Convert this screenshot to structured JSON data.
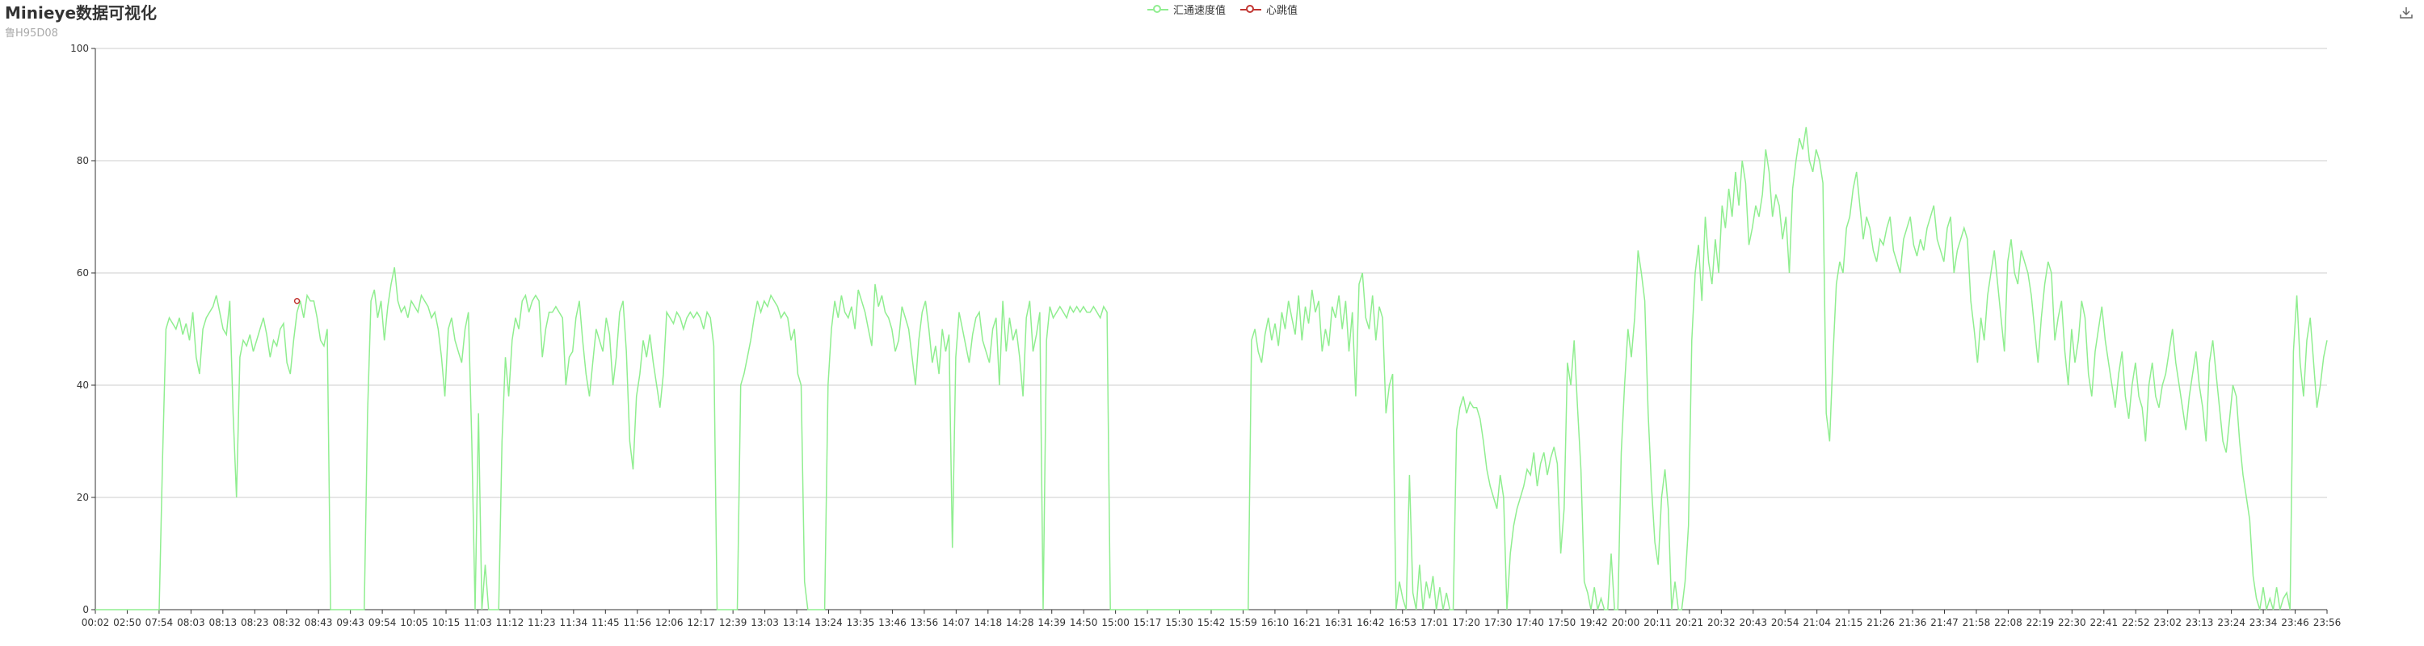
{
  "title": "Minieye数据可视化",
  "subtitle": "鲁H95D08",
  "legend": {
    "items": [
      {
        "label": "汇通速度值",
        "color": "#90ee90"
      },
      {
        "label": "心跳值",
        "color": "#c23531"
      }
    ]
  },
  "toolbar": {
    "download_icon": "download-icon"
  },
  "chart_data": {
    "type": "line",
    "title": "Minieye数据可视化",
    "subtitle": "鲁H95D08",
    "xlabel": "",
    "ylabel": "",
    "ylim": [
      0,
      100
    ],
    "yticks": [
      0,
      20,
      40,
      60,
      80,
      100
    ],
    "grid": true,
    "legend_position": "top-center",
    "x_tick_labels": [
      "00:02",
      "02:50",
      "07:54",
      "08:03",
      "08:13",
      "08:23",
      "08:32",
      "08:43",
      "09:43",
      "09:54",
      "10:05",
      "10:15",
      "11:03",
      "11:12",
      "11:23",
      "11:34",
      "11:45",
      "11:56",
      "12:06",
      "12:17",
      "12:39",
      "13:03",
      "13:14",
      "13:24",
      "13:35",
      "13:46",
      "13:56",
      "14:07",
      "14:18",
      "14:28",
      "14:39",
      "14:50",
      "15:00",
      "15:17",
      "15:30",
      "15:42",
      "15:59",
      "16:10",
      "16:21",
      "16:31",
      "16:42",
      "16:53",
      "17:01",
      "17:20",
      "17:30",
      "17:40",
      "17:50",
      "19:42",
      "20:00",
      "20:11",
      "20:21",
      "20:32",
      "20:43",
      "20:54",
      "21:04",
      "21:15",
      "21:26",
      "21:36",
      "21:47",
      "21:58",
      "22:08",
      "22:19",
      "22:30",
      "22:41",
      "22:52",
      "23:02",
      "23:13",
      "23:24",
      "23:34",
      "23:46",
      "23:56"
    ],
    "series": [
      {
        "name": "汇通速度值",
        "color": "#90ee90",
        "values": [
          0,
          0,
          0,
          0,
          0,
          0,
          0,
          0,
          0,
          0,
          0,
          0,
          0,
          0,
          0,
          0,
          0,
          0,
          0,
          0,
          27,
          50,
          52,
          51,
          50,
          52,
          49,
          51,
          48,
          53,
          45,
          42,
          50,
          52,
          53,
          54,
          56,
          53,
          50,
          49,
          55,
          35,
          20,
          45,
          48,
          47,
          49,
          46,
          48,
          50,
          52,
          49,
          45,
          48,
          47,
          50,
          51,
          44,
          42,
          48,
          53,
          55,
          52,
          56,
          55,
          55,
          52,
          48,
          47,
          50,
          0,
          0,
          0,
          0,
          0,
          0,
          0,
          0,
          0,
          0,
          0,
          35,
          55,
          57,
          52,
          55,
          48,
          54,
          58,
          61,
          55,
          53,
          54,
          52,
          55,
          54,
          53,
          56,
          55,
          54,
          52,
          53,
          50,
          45,
          38,
          50,
          52,
          48,
          46,
          44,
          50,
          53,
          30,
          0,
          35,
          0,
          8,
          0,
          0,
          0,
          0,
          30,
          45,
          38,
          48,
          52,
          50,
          55,
          56,
          53,
          55,
          56,
          55,
          45,
          50,
          53,
          53,
          54,
          53,
          52,
          40,
          45,
          46,
          52,
          55,
          48,
          42,
          38,
          44,
          50,
          48,
          46,
          52,
          49,
          40,
          45,
          53,
          55,
          46,
          30,
          25,
          38,
          42,
          48,
          45,
          49,
          44,
          40,
          36,
          42,
          53,
          52,
          51,
          53,
          52,
          50,
          52,
          53,
          52,
          53,
          52,
          50,
          53,
          52,
          47,
          0,
          0,
          0,
          0,
          0,
          0,
          0,
          40,
          42,
          45,
          48,
          52,
          55,
          53,
          55,
          54,
          56,
          55,
          54,
          52,
          53,
          52,
          48,
          50,
          42,
          40,
          5,
          0,
          0,
          0,
          0,
          0,
          0,
          40,
          50,
          55,
          52,
          56,
          53,
          52,
          54,
          50,
          57,
          55,
          53,
          50,
          47,
          58,
          54,
          56,
          53,
          52,
          50,
          46,
          48,
          54,
          52,
          50,
          45,
          40,
          48,
          53,
          55,
          50,
          44,
          47,
          42,
          50,
          46,
          49,
          11,
          45,
          53,
          50,
          47,
          44,
          49,
          52,
          53,
          48,
          46,
          44,
          50,
          52,
          40,
          55,
          46,
          52,
          48,
          50,
          45,
          38,
          52,
          55,
          46,
          49,
          53,
          0,
          48,
          54,
          52,
          53,
          54,
          53,
          52,
          54,
          53,
          54,
          53,
          54,
          53,
          53,
          54,
          53,
          52,
          54,
          53,
          0,
          0,
          0,
          0,
          0,
          0,
          0,
          0,
          0,
          0,
          0,
          0,
          0,
          0,
          0,
          0,
          0,
          0,
          0,
          0,
          0,
          0,
          0,
          0,
          0,
          0,
          0,
          0,
          0,
          0,
          0,
          0,
          0,
          0,
          0,
          0,
          0,
          0,
          0,
          0,
          0,
          0,
          48,
          50,
          46,
          44,
          49,
          52,
          48,
          51,
          47,
          53,
          50,
          55,
          52,
          49,
          56,
          48,
          54,
          51,
          57,
          53,
          55,
          46,
          50,
          47,
          54,
          52,
          56,
          50,
          55,
          46,
          53,
          38,
          58,
          60,
          52,
          50,
          56,
          48,
          54,
          52,
          35,
          40,
          42,
          0,
          5,
          2,
          0,
          24,
          3,
          0,
          8,
          0,
          5,
          2,
          6,
          0,
          4,
          0,
          3,
          0,
          0,
          32,
          36,
          38,
          35,
          37,
          36,
          36,
          34,
          30,
          25,
          22,
          20,
          18,
          24,
          20,
          0,
          10,
          15,
          18,
          20,
          22,
          25,
          24,
          28,
          22,
          26,
          28,
          24,
          27,
          29,
          26,
          10,
          18,
          44,
          40,
          48,
          36,
          25,
          5,
          3,
          0,
          4,
          0,
          2,
          0,
          0,
          10,
          0,
          0,
          28,
          40,
          50,
          45,
          52,
          64,
          60,
          55,
          35,
          22,
          12,
          8,
          20,
          25,
          18,
          0,
          5,
          0,
          0,
          5,
          15,
          48,
          60,
          65,
          55,
          70,
          62,
          58,
          66,
          60,
          72,
          68,
          75,
          70,
          78,
          72,
          80,
          76,
          65,
          68,
          72,
          70,
          74,
          82,
          78,
          70,
          74,
          72,
          66,
          70,
          60,
          75,
          80,
          84,
          82,
          86,
          80,
          78,
          82,
          80,
          76,
          35,
          30,
          45,
          58,
          62,
          60,
          68,
          70,
          75,
          78,
          72,
          66,
          70,
          68,
          64,
          62,
          66,
          65,
          68,
          70,
          64,
          62,
          60,
          66,
          68,
          70,
          65,
          63,
          66,
          64,
          68,
          70,
          72,
          66,
          64,
          62,
          68,
          70,
          60,
          64,
          66,
          68,
          66,
          55,
          50,
          44,
          52,
          48,
          56,
          60,
          64,
          58,
          52,
          46,
          62,
          66,
          60,
          58,
          64,
          62,
          60,
          56,
          50,
          44,
          52,
          58,
          62,
          60,
          48,
          52,
          55,
          46,
          40,
          50,
          44,
          48,
          55,
          52,
          42,
          38,
          46,
          50,
          54,
          48,
          44,
          40,
          36,
          42,
          46,
          38,
          34,
          40,
          44,
          38,
          36,
          30,
          40,
          44,
          38,
          36,
          40,
          42,
          46,
          50,
          44,
          40,
          36,
          32,
          38,
          42,
          46,
          40,
          36,
          30,
          44,
          48,
          42,
          36,
          30,
          28,
          34,
          40,
          38,
          30,
          24,
          20,
          16,
          6,
          2,
          0,
          4,
          0,
          2,
          0,
          4,
          0,
          2,
          3,
          0,
          46,
          56,
          44,
          38,
          48,
          52,
          44,
          36,
          40,
          45,
          48
        ]
      },
      {
        "name": "心跳值",
        "color": "#c23531",
        "values": [
          {
            "x_index": 60,
            "y": 55
          }
        ]
      }
    ]
  }
}
